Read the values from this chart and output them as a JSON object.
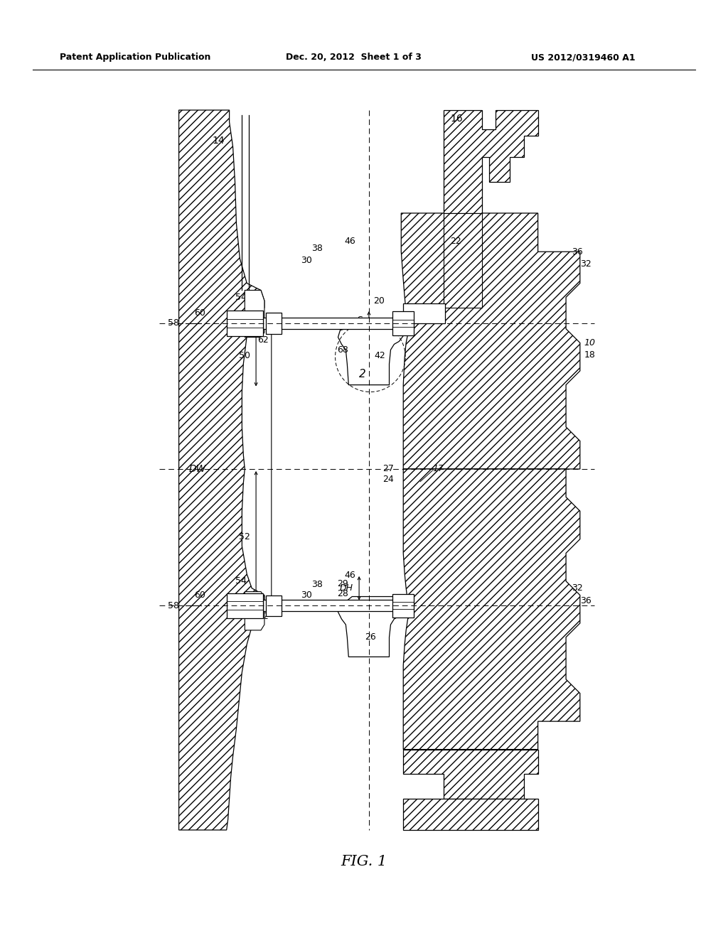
{
  "header_left": "Patent Application Publication",
  "header_center": "Dec. 20, 2012  Sheet 1 of 3",
  "header_right": "US 2012/0319460 A1",
  "background_color": "#ffffff",
  "line_color": "#000000",
  "text_color": "#000000",
  "fig_label": "FIG. 1"
}
